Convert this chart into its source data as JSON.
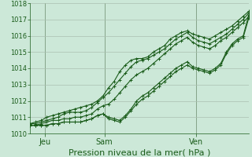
{
  "title": "",
  "xlabel": "Pression niveau de la mer( hPa )",
  "ylabel": "",
  "bg_color": "#cce8d8",
  "plot_bg_color": "#cce8d8",
  "grid_color": "#aabfb0",
  "line_color": "#1a5c1a",
  "vline_color": "#336633",
  "ylim": [
    1010.0,
    1018.0
  ],
  "yticks": [
    1010,
    1011,
    1012,
    1013,
    1014,
    1015,
    1016,
    1017,
    1018
  ],
  "x_day_labels": [
    [
      "Jeu",
      0.07
    ],
    [
      "Sam",
      0.34
    ],
    [
      "Ven",
      0.76
    ]
  ],
  "x_vlines": [
    0.07,
    0.34,
    0.76
  ],
  "series": [
    [
      1010.6,
      1010.7,
      1010.8,
      1011.0,
      1011.1,
      1011.2,
      1011.3,
      1011.4,
      1011.5,
      1011.6,
      1011.7,
      1011.8,
      1012.0,
      1012.3,
      1012.8,
      1013.2,
      1013.8,
      1014.2,
      1014.5,
      1014.6,
      1014.6,
      1014.7,
      1015.0,
      1015.2,
      1015.4,
      1015.8,
      1016.0,
      1016.2,
      1016.3,
      1016.1,
      1016.0,
      1015.9,
      1015.8,
      1016.0,
      1016.2,
      1016.4,
      1016.6,
      1016.9,
      1017.2,
      1017.5
    ],
    [
      1010.6,
      1010.6,
      1010.7,
      1010.8,
      1010.9,
      1011.0,
      1011.2,
      1011.3,
      1011.3,
      1011.3,
      1011.4,
      1011.6,
      1011.9,
      1012.2,
      1012.5,
      1012.9,
      1013.3,
      1013.7,
      1014.1,
      1014.4,
      1014.5,
      1014.6,
      1014.8,
      1015.0,
      1015.2,
      1015.5,
      1015.8,
      1016.0,
      1016.2,
      1015.9,
      1015.7,
      1015.6,
      1015.5,
      1015.7,
      1015.9,
      1016.1,
      1016.4,
      1016.7,
      1017.0,
      1017.4
    ],
    [
      1010.5,
      1010.5,
      1010.6,
      1010.7,
      1010.8,
      1010.8,
      1010.9,
      1010.9,
      1011.0,
      1011.0,
      1011.1,
      1011.2,
      1011.5,
      1011.7,
      1011.8,
      1012.1,
      1012.5,
      1012.9,
      1013.3,
      1013.6,
      1013.8,
      1014.0,
      1014.3,
      1014.6,
      1014.9,
      1015.2,
      1015.5,
      1015.7,
      1015.9,
      1015.6,
      1015.4,
      1015.3,
      1015.2,
      1015.4,
      1015.7,
      1015.9,
      1016.2,
      1016.5,
      1016.8,
      1017.2
    ],
    [
      1010.5,
      1010.5,
      1010.5,
      1010.5,
      1010.6,
      1010.6,
      1010.7,
      1010.7,
      1010.7,
      1010.7,
      1010.8,
      1010.9,
      1011.1,
      1011.2,
      1011.0,
      1010.9,
      1010.8,
      1011.1,
      1011.5,
      1012.0,
      1012.3,
      1012.5,
      1012.8,
      1013.1,
      1013.4,
      1013.7,
      1014.0,
      1014.2,
      1014.4,
      1014.1,
      1014.0,
      1013.9,
      1013.8,
      1014.0,
      1014.3,
      1015.0,
      1015.5,
      1015.8,
      1016.0,
      1017.3
    ],
    [
      1010.5,
      1010.5,
      1010.5,
      1010.5,
      1010.6,
      1010.6,
      1010.7,
      1010.7,
      1010.7,
      1010.7,
      1010.8,
      1010.9,
      1011.1,
      1011.2,
      1010.9,
      1010.8,
      1010.7,
      1011.0,
      1011.4,
      1011.8,
      1012.1,
      1012.3,
      1012.6,
      1012.9,
      1013.2,
      1013.5,
      1013.8,
      1014.0,
      1014.2,
      1014.0,
      1013.9,
      1013.8,
      1013.7,
      1013.9,
      1014.2,
      1014.9,
      1015.4,
      1015.7,
      1015.9,
      1017.1
    ]
  ],
  "n_points": 40,
  "marker": "+",
  "markersize": 2.5,
  "linewidth": 0.8,
  "tick_labelsize": 6,
  "xlabel_fontsize": 8
}
